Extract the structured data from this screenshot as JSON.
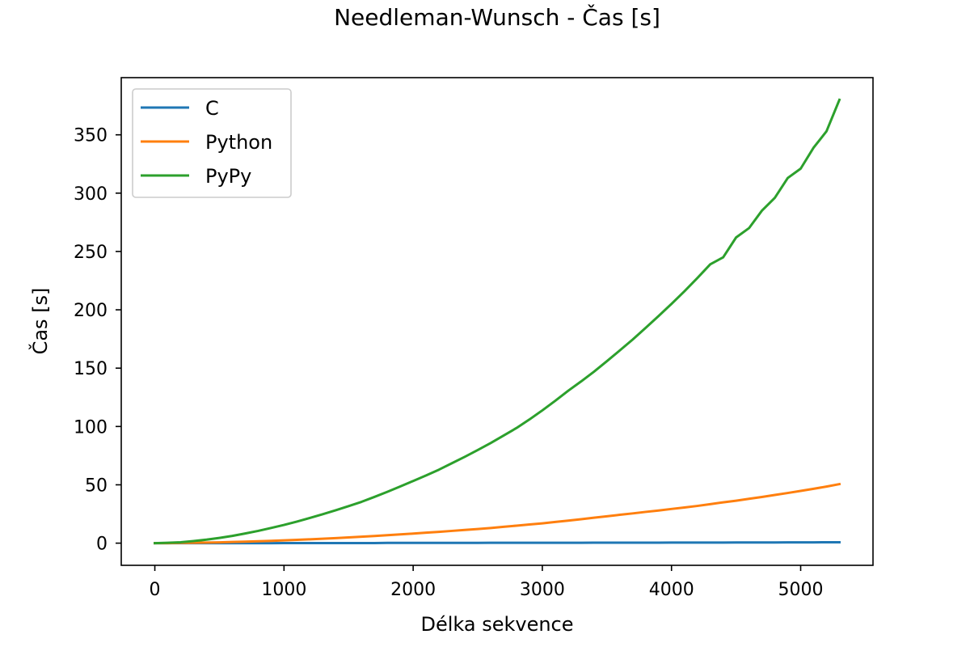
{
  "chart_data": {
    "type": "line",
    "title": "Needleman-Wunsch - Čas [s]",
    "xlabel": "Délka sekvence",
    "ylabel": "Čas [s]",
    "xlim": [
      -260,
      5560
    ],
    "ylim": [
      -19,
      399
    ],
    "xticks": [
      0,
      1000,
      2000,
      3000,
      4000,
      5000
    ],
    "yticks": [
      0,
      50,
      100,
      150,
      200,
      250,
      300,
      350
    ],
    "grid": false,
    "legend_position": "upper-left",
    "x": [
      0,
      100,
      200,
      300,
      400,
      500,
      600,
      700,
      800,
      900,
      1000,
      1100,
      1200,
      1300,
      1400,
      1500,
      1600,
      1700,
      1800,
      1900,
      2000,
      2100,
      2200,
      2300,
      2400,
      2500,
      2600,
      2700,
      2800,
      2900,
      3000,
      3100,
      3200,
      3300,
      3400,
      3500,
      3600,
      3700,
      3800,
      3900,
      4000,
      4100,
      4200,
      4300,
      4400,
      4500,
      4600,
      4700,
      4800,
      4900,
      5000,
      5100,
      5200,
      5300
    ],
    "series": [
      {
        "name": "C",
        "color": "#1f77b4",
        "values": [
          0,
          0,
          0,
          0,
          0,
          0,
          0,
          0,
          0,
          0,
          0.1,
          0.1,
          0.1,
          0.1,
          0.1,
          0.1,
          0.1,
          0.1,
          0.2,
          0.2,
          0.2,
          0.2,
          0.2,
          0.2,
          0.2,
          0.2,
          0.3,
          0.3,
          0.3,
          0.3,
          0.3,
          0.3,
          0.3,
          0.3,
          0.4,
          0.4,
          0.4,
          0.4,
          0.4,
          0.4,
          0.5,
          0.5,
          0.5,
          0.5,
          0.5,
          0.6,
          0.6,
          0.6,
          0.6,
          0.7,
          0.7,
          0.7,
          0.8,
          0.8
        ]
      },
      {
        "name": "Python",
        "color": "#ff7f0e",
        "values": [
          0,
          0,
          0.2,
          0.3,
          0.5,
          0.7,
          1.0,
          1.3,
          1.6,
          2.0,
          2.4,
          2.8,
          3.3,
          3.8,
          4.3,
          4.9,
          5.5,
          6.1,
          6.8,
          7.5,
          8.2,
          9.0,
          9.7,
          10.5,
          11.3,
          12.1,
          13.0,
          14.0,
          15.0,
          16.0,
          17.0,
          18.2,
          19.3,
          20.5,
          21.8,
          23.0,
          24.3,
          25.5,
          26.8,
          28.0,
          29.3,
          30.6,
          31.9,
          33.4,
          35.0,
          36.4,
          38.0,
          39.6,
          41.3,
          43.0,
          44.8,
          46.6,
          48.5,
          50.6
        ]
      },
      {
        "name": "PyPy",
        "color": "#2ca02c",
        "values": [
          0,
          0.3,
          0.8,
          1.8,
          3.0,
          4.5,
          6.2,
          8.3,
          10.5,
          13.0,
          15.6,
          18.5,
          21.6,
          24.8,
          28.2,
          31.7,
          35.4,
          39.6,
          44.0,
          48.6,
          53.3,
          58.0,
          63.0,
          68.5,
          74.0,
          79.8,
          85.8,
          92.2,
          98.7,
          106.0,
          113.8,
          122.0,
          130.6,
          138.6,
          147.0,
          156.0,
          165.2,
          174.6,
          184.5,
          194.7,
          205.1,
          215.9,
          227.2,
          239.0,
          245.0,
          262.0,
          270.0,
          285.0,
          296.0,
          313.0,
          321.0,
          339.0,
          353.0,
          380.0
        ]
      }
    ]
  }
}
